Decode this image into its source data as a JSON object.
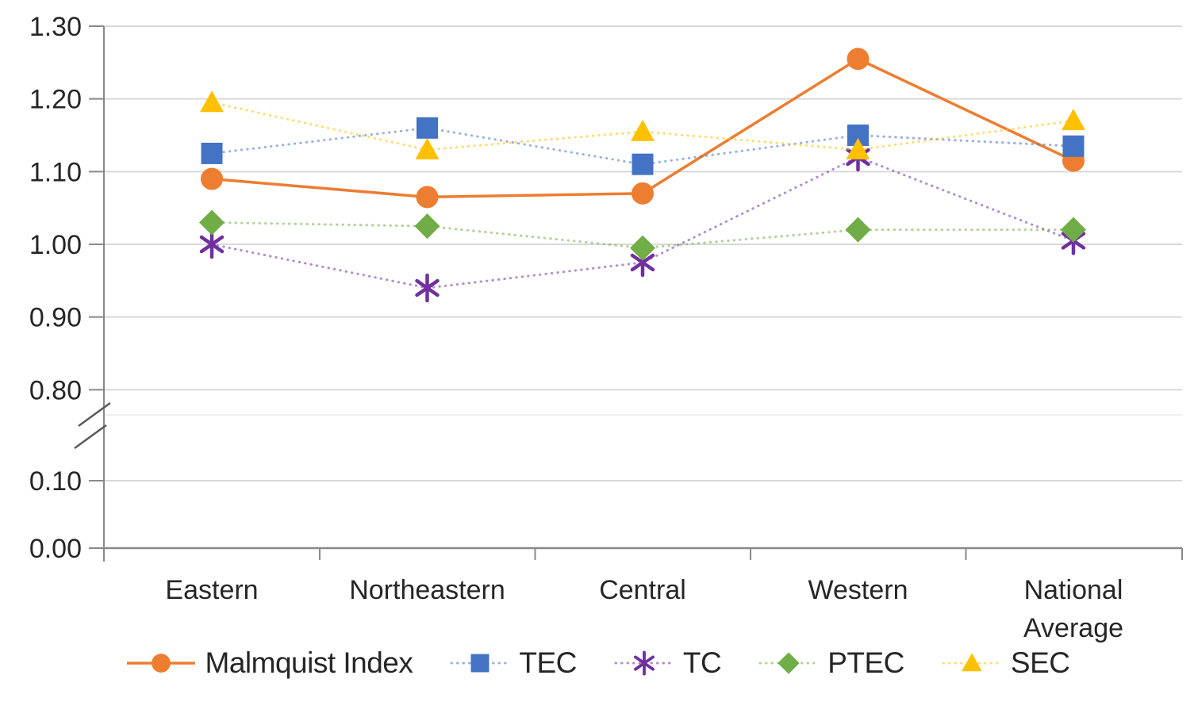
{
  "chart_data": {
    "type": "line",
    "title": "",
    "xlabel": "",
    "ylabel": "",
    "categories": [
      "Eastern",
      "Northeastern",
      "Central",
      "Western",
      "National\nAverage"
    ],
    "series": [
      {
        "name": "Malmquist Index",
        "marker": "circle",
        "line_style": "solid",
        "color": "#ED7D31",
        "values": [
          1.09,
          1.065,
          1.07,
          1.255,
          1.115
        ]
      },
      {
        "name": "TEC",
        "marker": "square",
        "line_style": "dotted",
        "color": "#4472C4",
        "values": [
          1.125,
          1.16,
          1.11,
          1.15,
          1.135
        ]
      },
      {
        "name": "TC",
        "marker": "asterisk",
        "line_style": "dotted",
        "color": "#7030A0",
        "values": [
          1.0,
          0.94,
          0.975,
          1.12,
          1.005
        ]
      },
      {
        "name": "PTEC",
        "marker": "diamond",
        "line_style": "dotted",
        "color": "#70AD47",
        "values": [
          1.03,
          1.025,
          0.995,
          1.02,
          1.02
        ]
      },
      {
        "name": "SEC",
        "marker": "triangle",
        "line_style": "dotted",
        "color": "#FFC000",
        "values": [
          1.195,
          1.13,
          1.155,
          1.13,
          1.17
        ]
      }
    ],
    "y_axis": {
      "upper_ticks": [
        {
          "label": "1.30",
          "value": 1.3
        },
        {
          "label": "1.20",
          "value": 1.2
        },
        {
          "label": "1.10",
          "value": 1.1
        },
        {
          "label": "1.00",
          "value": 1.0
        },
        {
          "label": "0.90",
          "value": 0.9
        },
        {
          "label": "0.80",
          "value": 0.8
        }
      ],
      "lower_ticks": [
        {
          "label": "0.10",
          "value": 0.1
        },
        {
          "label": "0.00",
          "value": 0.0
        }
      ],
      "axis_break": true
    },
    "grid": true,
    "legend_position": "bottom",
    "colors": {
      "gridline": "#D9D9D9",
      "faint_gridline": "#EFEFEF",
      "axis_line": "#898989",
      "break_mark": "#595959",
      "text": "#262626"
    }
  }
}
